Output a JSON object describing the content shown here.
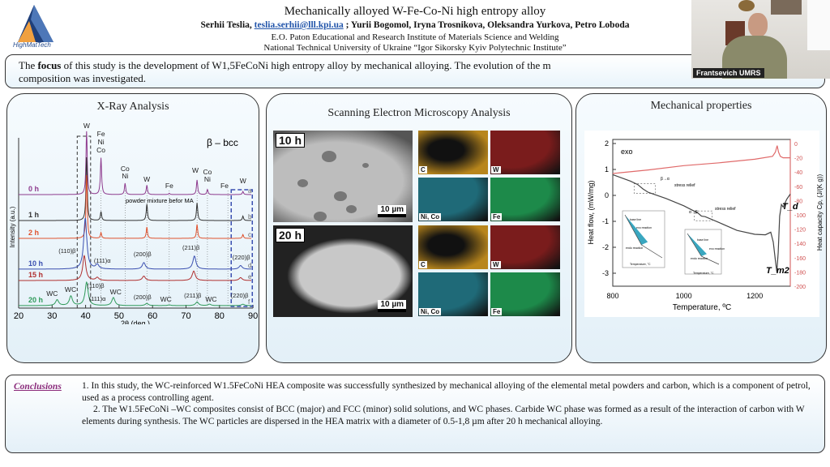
{
  "header": {
    "logo_text": "HighMatTech",
    "title": "Mechanically alloyed W-Fe-Co-Ni high entropy alloy",
    "author_first": "Serhii Teslia, ",
    "email": "teslia.serhii@lll.kpi.ua",
    "authors_rest": " ; Yurii Bogomol, Iryna Trosnikova, Oleksandra Yurkova, Petro Loboda",
    "institute_1": "E.O. Paton Educational and Research Institute of Materials Science and Welding",
    "institute_2": "National Technical University of Ukraine “Igor Sikorsky Kyiv Polytechnic Institute”"
  },
  "focus": {
    "pre": "The ",
    "bold": "focus",
    "post": " of this study is the development of W1,5FeCoNi high entropy alloy by mechanical alloying. The evolution of the m",
    "line2": "composition was investigated."
  },
  "webcam": {
    "name": "Frantsevich UMRS"
  },
  "panels": {
    "xrd_title": "X-Ray Analysis",
    "sem_title": "Scanning Electron Microscopy Analysis",
    "mech_title": "Mechanical properties"
  },
  "sem": {
    "rows": [
      {
        "label": "10 h",
        "scale": "10 µm",
        "maps": [
          "C",
          "W",
          "Ni, Co",
          "Fe"
        ]
      },
      {
        "label": "20 h",
        "scale": "10 µm",
        "maps": [
          "C",
          "W",
          "Ni, Co",
          "Fe"
        ]
      }
    ],
    "map_colors": {
      "C": "#b8861c",
      "W": "#7a1c1c",
      "Ni, Co": "#1f6a78",
      "Fe": "#1d8a4a"
    }
  },
  "chart_data": [
    {
      "type": "line",
      "xlabel": "2θ (deg.)",
      "ylabel": "Intensity (a.u.)",
      "xlim": [
        20,
        90
      ],
      "xticks": [
        20,
        30,
        40,
        50,
        60,
        70,
        80,
        90
      ],
      "legend_note": "β – bcc",
      "note": "powder mixture befor MA",
      "series": [
        {
          "name": "0 h",
          "tag": "a",
          "color": "#8e3b8e",
          "peaks": [
            [
              40.3,
              100
            ],
            [
              44.6,
              58
            ],
            [
              51.8,
              18
            ],
            [
              58.3,
              15
            ],
            [
              65,
              2
            ],
            [
              73.3,
              23
            ],
            [
              76.4,
              8
            ],
            [
              87,
              5
            ]
          ]
        },
        {
          "name": "1 h",
          "tag": "b",
          "color": "#333333",
          "peaks": [
            [
              40.3,
              100
            ],
            [
              44.6,
              14
            ],
            [
              58.3,
              26
            ],
            [
              73.3,
              28
            ],
            [
              87,
              7
            ]
          ]
        },
        {
          "name": "2 h",
          "tag": "c",
          "color": "#e0522e",
          "peaks": [
            [
              40.3,
              100
            ],
            [
              44.6,
              9
            ],
            [
              58.3,
              18
            ],
            [
              73.3,
              22
            ],
            [
              87,
              6
            ]
          ]
        },
        {
          "name": "10 h",
          "tag": "d",
          "color": "#3a4fb0",
          "peaks": [
            [
              39.9,
              70
            ],
            [
              43.5,
              6
            ],
            [
              57.4,
              9
            ],
            [
              72.5,
              18
            ],
            [
              86.3,
              5
            ]
          ]
        },
        {
          "name": "15 h",
          "tag": "e",
          "color": "#b03030",
          "peaks": [
            [
              39.6,
              34
            ],
            [
              43.5,
              4
            ],
            [
              57.4,
              6
            ],
            [
              72.3,
              13
            ],
            [
              86.3,
              4
            ]
          ]
        },
        {
          "name": "20 h",
          "tag": "f",
          "color": "#2f9a5a",
          "peaks": [
            [
              31.5,
              8
            ],
            [
              35.6,
              13
            ],
            [
              40.3,
              32
            ],
            [
              48.3,
              11
            ],
            [
              58.3,
              3
            ],
            [
              65,
              1
            ],
            [
              73.3,
              5
            ],
            [
              77,
              2
            ],
            [
              87,
              2
            ]
          ]
        }
      ],
      "annotations": [
        {
          "text": "W",
          "at": 40.3,
          "series": 0,
          "lift": 82
        },
        {
          "text": "Fe",
          "at": 44.6,
          "series": 0,
          "lift": 72
        },
        {
          "text": "Ni",
          "at": 44.6,
          "series": 0,
          "lift": 62
        },
        {
          "text": "Co",
          "at": 44.6,
          "series": 0,
          "lift": 52
        },
        {
          "text": "Co",
          "at": 51.8,
          "series": 0,
          "lift": 29
        },
        {
          "text": "Ni",
          "at": 51.8,
          "series": 0,
          "lift": 20
        },
        {
          "text": "W",
          "at": 58.3,
          "series": 0,
          "lift": 16
        },
        {
          "text": "Fe",
          "at": 65,
          "series": 0,
          "lift": 8
        },
        {
          "text": "W",
          "at": 72.8,
          "series": 0,
          "lift": 27
        },
        {
          "text": "Co",
          "at": 76.4,
          "series": 0,
          "lift": 25
        },
        {
          "text": "Ni",
          "at": 76.4,
          "series": 0,
          "lift": 16
        },
        {
          "text": "Fe",
          "at": 81.5,
          "series": 0,
          "lift": 8
        },
        {
          "text": "W",
          "at": 87,
          "series": 0,
          "lift": 14
        },
        {
          "text": "(110)β",
          "at": 34.5,
          "series": 3,
          "lift": 20
        },
        {
          "text": "(111)α",
          "at": 45,
          "series": 3,
          "lift": 8
        },
        {
          "text": "(200)β",
          "at": 57,
          "series": 3,
          "lift": 16
        },
        {
          "text": "(211)β",
          "at": 71.5,
          "series": 3,
          "lift": 24
        },
        {
          "text": "(220)β",
          "at": 86.5,
          "series": 3,
          "lift": 12
        },
        {
          "text": "WC",
          "at": 30,
          "series": 5,
          "lift": 12
        },
        {
          "text": "WC",
          "at": 35.5,
          "series": 5,
          "lift": 17
        },
        {
          "text": "(110)β",
          "at": 43,
          "series": 5,
          "lift": 22
        },
        {
          "text": "(111)α",
          "at": 43.5,
          "series": 5,
          "lift": 6
        },
        {
          "text": "WC",
          "at": 49,
          "series": 5,
          "lift": 14
        },
        {
          "text": "(200)β",
          "at": 57,
          "series": 5,
          "lift": 8
        },
        {
          "text": "WC",
          "at": 64,
          "series": 5,
          "lift": 5
        },
        {
          "text": "(211)β",
          "at": 72,
          "series": 5,
          "lift": 10
        },
        {
          "text": "WC",
          "at": 77.5,
          "series": 5,
          "lift": 5
        },
        {
          "text": "(220)β",
          "at": 86,
          "series": 5,
          "lift": 10
        }
      ]
    },
    {
      "type": "line",
      "xlabel": "Temperature, ºC",
      "ylabel": "Heat flow, (mW/mg)",
      "y2label": "Heat capacity Cp, (J/(K g))",
      "xlim": [
        800,
        1300
      ],
      "xticks": [
        800,
        1000,
        1200
      ],
      "ylim": [
        -3.5,
        2
      ],
      "yticks": [
        2,
        1,
        0,
        -1,
        -2,
        -3
      ],
      "y2lim": [
        -200,
        0
      ],
      "y2ticks": [
        0,
        -20,
        -40,
        -60,
        -80,
        -100,
        -120,
        -140,
        -160,
        -180,
        -200
      ],
      "exo_label": "exo",
      "series": [
        {
          "name": "Heat flow",
          "axis": "left",
          "color": "#444444",
          "x": [
            800,
            850,
            870,
            885,
            900,
            950,
            1000,
            1040,
            1050,
            1060,
            1100,
            1150,
            1200,
            1230,
            1245,
            1252,
            1258,
            1262,
            1266,
            1270,
            1275,
            1280,
            1290,
            1300
          ],
          "y": [
            0.8,
            0.55,
            0.42,
            0.25,
            0.12,
            -0.12,
            -0.4,
            -0.68,
            -0.8,
            -0.82,
            -1.05,
            -1.35,
            -1.5,
            -1.52,
            -1.42,
            -1.8,
            -2.5,
            -2.95,
            -2.2,
            -0.8,
            -0.35,
            -0.45,
            -0.15,
            0.05
          ]
        },
        {
          "name": "Cp",
          "axis": "right",
          "color": "#e06a6a",
          "x": [
            800,
            900,
            1000,
            1100,
            1200,
            1250,
            1258,
            1263,
            1267,
            1272,
            1280,
            1300
          ],
          "y": [
            -42,
            -37,
            -31,
            -27,
            -22,
            -18,
            -12,
            -3,
            -12,
            -18,
            -20,
            -20
          ]
        }
      ],
      "annotations": [
        "β→α",
        "stress relief",
        "α→β",
        "stress relief",
        "T_d",
        "T_m2"
      ],
      "inset_labels": [
        "base line",
        "exo reaction",
        "endo reaction",
        "Temperature, °C"
      ]
    }
  ],
  "conclusions": {
    "heading": "Conclusions",
    "p1": "1. In this study, the WC-reinforced W1.5FeCoNi HEA composite was successfully synthesized by mechanical alloying of the elemental metal powders and carbon, which is a component of petrol, used as a process controlling agent.",
    "p2": "2. The W1.5FeCoNi –WC composites consist of BCC (major) and FCC (minor) solid solutions, and WC phases. Carbide WC phase was formed as a result of the interaction of carbon with W elements during synthesis. The WC particles are dispersed in the HEA matrix with a diameter of 0.5-1,8 µm after 20 h mechanical alloying."
  }
}
